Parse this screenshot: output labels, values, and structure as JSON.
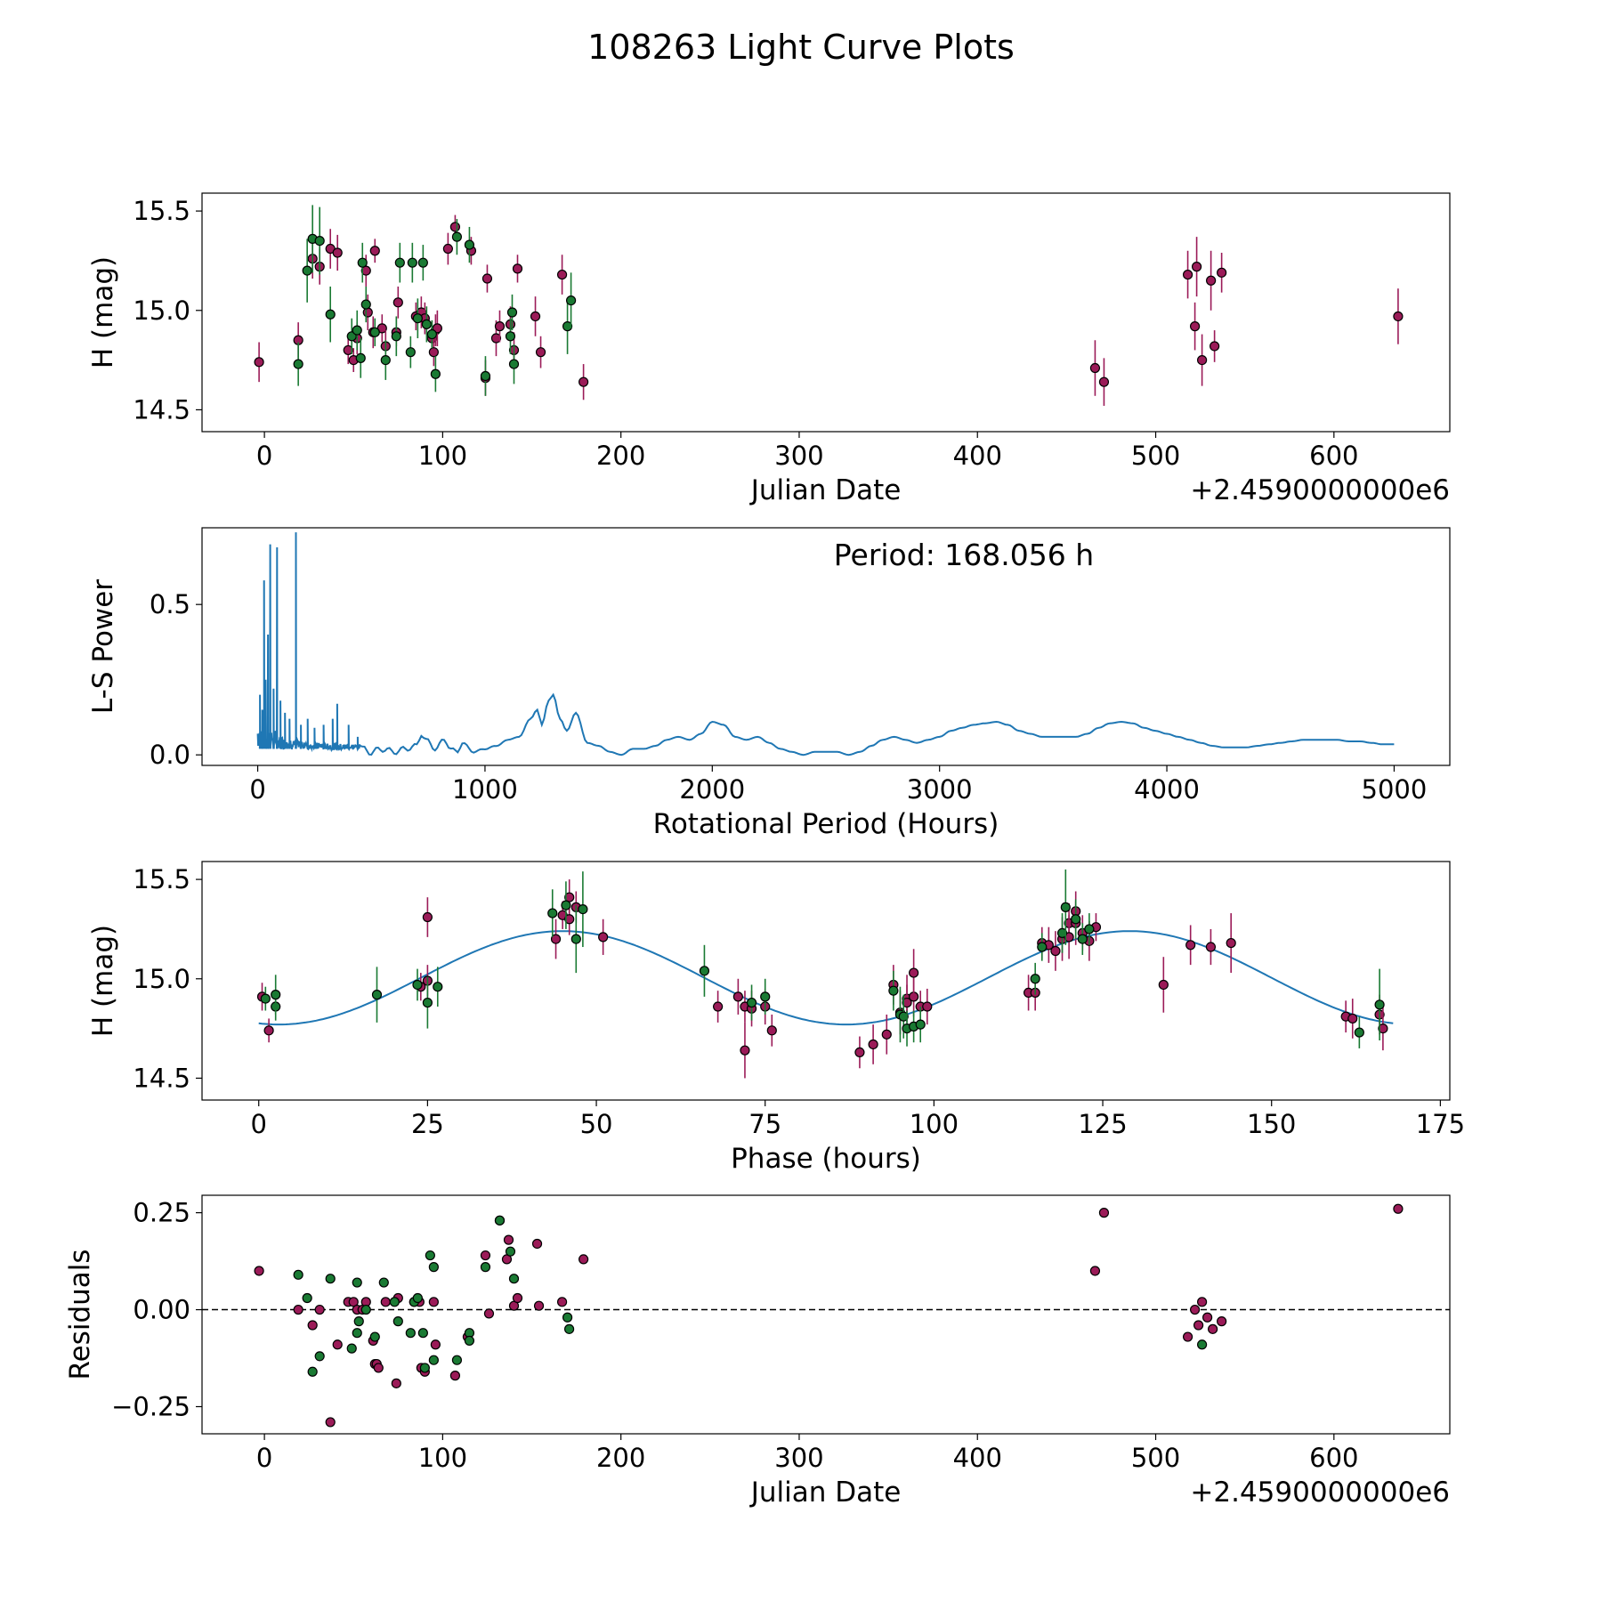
{
  "figure": {
    "title": "108263 Light Curve Plots"
  },
  "colors": {
    "filter_r": "#9b1b58",
    "filter_g": "#1a7a33",
    "marker_edge": "#000000",
    "model_line": "#1f77b4",
    "zero_line": "#000000"
  },
  "chart_data": [
    {
      "id": "light_curve",
      "type": "scatter",
      "title": "",
      "xlabel": "Julian Date",
      "ylabel": "H (mag)",
      "x_offset_text": "+2.4590000000e6",
      "xlim": [
        -35,
        665
      ],
      "ylim": [
        14.39,
        15.59
      ],
      "xticks": [
        0,
        100,
        200,
        300,
        400,
        500,
        600
      ],
      "xtick_labels": [
        "0",
        "100",
        "200",
        "300",
        "400",
        "500",
        "600"
      ],
      "yticks": [
        14.5,
        15.0,
        15.5
      ],
      "ytick_labels": [
        "14.5",
        "15.0",
        "15.5"
      ],
      "y_inverted": false,
      "grid": false,
      "series": [
        {
          "filter": "r",
          "color": "#9b1b58",
          "x": [
            -3,
            19,
            27,
            31,
            37,
            41,
            47,
            50,
            52,
            57,
            58,
            61,
            62,
            66,
            68,
            74,
            75,
            85,
            88,
            90,
            94,
            95,
            96,
            97,
            103,
            107,
            116,
            124,
            125,
            130,
            132,
            138,
            140,
            142,
            152,
            155,
            167,
            179,
            466,
            471,
            518,
            522,
            523,
            526,
            531,
            533,
            537,
            636
          ],
          "y": [
            14.74,
            14.85,
            15.26,
            15.22,
            15.31,
            15.29,
            14.8,
            14.75,
            14.86,
            15.2,
            14.99,
            14.89,
            15.3,
            14.91,
            14.82,
            14.89,
            15.04,
            14.97,
            14.99,
            14.96,
            14.86,
            14.79,
            14.9,
            14.91,
            15.31,
            15.42,
            15.3,
            14.66,
            15.16,
            14.86,
            14.92,
            14.93,
            14.8,
            15.21,
            14.97,
            14.79,
            15.18,
            14.64,
            14.71,
            14.64,
            15.18,
            14.92,
            15.22,
            14.75,
            15.15,
            14.82,
            15.19,
            14.97
          ],
          "yerr": [
            0.1,
            0.09,
            0.1,
            0.09,
            0.1,
            0.09,
            0.07,
            0.06,
            0.08,
            0.08,
            0.09,
            0.08,
            0.06,
            0.07,
            0.08,
            0.07,
            0.08,
            0.07,
            0.08,
            0.08,
            0.09,
            0.07,
            0.08,
            0.09,
            0.08,
            0.06,
            0.07,
            0.09,
            0.07,
            0.09,
            0.08,
            0.09,
            0.09,
            0.07,
            0.1,
            0.08,
            0.1,
            0.09,
            0.14,
            0.12,
            0.12,
            0.12,
            0.15,
            0.13,
            0.15,
            0.08,
            0.1,
            0.14
          ]
        },
        {
          "filter": "g",
          "color": "#1a7a33",
          "x": [
            19,
            24,
            27,
            31,
            37,
            49,
            52,
            54,
            55,
            57,
            62,
            68,
            74,
            76,
            82,
            83,
            86,
            89,
            91,
            94,
            96,
            108,
            115,
            124,
            140,
            139,
            138,
            170,
            172
          ],
          "y": [
            14.73,
            15.2,
            15.36,
            15.35,
            14.98,
            14.87,
            14.9,
            14.76,
            15.24,
            15.03,
            14.89,
            14.75,
            14.87,
            15.24,
            14.79,
            15.24,
            14.96,
            15.24,
            14.93,
            14.88,
            14.68,
            15.37,
            15.33,
            14.67,
            14.73,
            14.99,
            14.87,
            14.92,
            15.05
          ],
          "yerr": [
            0.11,
            0.16,
            0.17,
            0.17,
            0.14,
            0.09,
            0.1,
            0.1,
            0.1,
            0.09,
            0.07,
            0.1,
            0.1,
            0.1,
            0.08,
            0.1,
            0.1,
            0.09,
            0.09,
            0.07,
            0.09,
            0.09,
            0.09,
            0.1,
            0.1,
            0.09,
            0.09,
            0.14,
            0.14
          ]
        }
      ]
    },
    {
      "id": "periodogram",
      "type": "line",
      "title": "",
      "xlabel": "Rotational Period (Hours)",
      "ylabel": "L-S Power",
      "annotation": "Period: 168.056 h",
      "xlim": [
        -245,
        5245
      ],
      "ylim": [
        -0.035,
        0.755
      ],
      "xticks": [
        0,
        1000,
        2000,
        3000,
        4000,
        5000
      ],
      "xtick_labels": [
        "0",
        "1000",
        "2000",
        "3000",
        "4000",
        "5000"
      ],
      "yticks": [
        0.0,
        0.5
      ],
      "ytick_labels": [
        "0.0",
        "0.5"
      ],
      "grid": false,
      "spikes": [
        {
          "x": 10,
          "y": 0.2
        },
        {
          "x": 20,
          "y": 0.15
        },
        {
          "x": 28,
          "y": 0.58
        },
        {
          "x": 35,
          "y": 0.25
        },
        {
          "x": 45,
          "y": 0.4
        },
        {
          "x": 55,
          "y": 0.7
        },
        {
          "x": 70,
          "y": 0.22
        },
        {
          "x": 85,
          "y": 0.69
        },
        {
          "x": 100,
          "y": 0.18
        },
        {
          "x": 120,
          "y": 0.14
        },
        {
          "x": 140,
          "y": 0.12
        },
        {
          "x": 168.056,
          "y": 0.74
        },
        {
          "x": 190,
          "y": 0.1
        },
        {
          "x": 220,
          "y": 0.12
        },
        {
          "x": 250,
          "y": 0.09
        },
        {
          "x": 290,
          "y": 0.1
        },
        {
          "x": 330,
          "y": 0.12
        },
        {
          "x": 350,
          "y": 0.17
        },
        {
          "x": 400,
          "y": 0.1
        },
        {
          "x": 440,
          "y": 0.06
        }
      ],
      "envelope": {
        "x": [
          0,
          450,
          500,
          550,
          600,
          650,
          700,
          720,
          740,
          780,
          820,
          850,
          880,
          900,
          950,
          1000,
          1050,
          1100,
          1150,
          1200,
          1230,
          1250,
          1280,
          1300,
          1330,
          1360,
          1400,
          1450,
          1500,
          1550,
          1600,
          1650,
          1700,
          1750,
          1800,
          1850,
          1900,
          1950,
          2000,
          2050,
          2100,
          2150,
          2200,
          2250,
          2300,
          2350,
          2400,
          2450,
          2500,
          2550,
          2600,
          2650,
          2700,
          2750,
          2800,
          2850,
          2900,
          2950,
          3000,
          3050,
          3100,
          3150,
          3200,
          3250,
          3300,
          3350,
          3400,
          3450,
          3500,
          3550,
          3600,
          3650,
          3700,
          3750,
          3800,
          3850,
          3900,
          3950,
          4000,
          4050,
          4100,
          4150,
          4200,
          4250,
          4300,
          4350,
          4400,
          4450,
          4500,
          4550,
          4600,
          4650,
          4700,
          4750,
          4800,
          4850,
          4900,
          4950,
          5000
        ],
        "y": [
          0.02,
          0.02,
          0.01,
          0.02,
          0.01,
          0.02,
          0.03,
          0.07,
          0.05,
          0.02,
          0.05,
          0.02,
          0.01,
          0.04,
          0.01,
          0.02,
          0.03,
          0.05,
          0.06,
          0.12,
          0.15,
          0.1,
          0.18,
          0.2,
          0.12,
          0.08,
          0.14,
          0.04,
          0.03,
          0.01,
          0.0,
          0.02,
          0.02,
          0.03,
          0.05,
          0.06,
          0.05,
          0.07,
          0.11,
          0.1,
          0.06,
          0.05,
          0.06,
          0.04,
          0.02,
          0.01,
          0.0,
          0.01,
          0.01,
          0.01,
          0.0,
          0.01,
          0.03,
          0.05,
          0.06,
          0.05,
          0.04,
          0.05,
          0.06,
          0.08,
          0.09,
          0.1,
          0.105,
          0.11,
          0.1,
          0.08,
          0.07,
          0.06,
          0.06,
          0.06,
          0.06,
          0.07,
          0.09,
          0.105,
          0.11,
          0.105,
          0.09,
          0.08,
          0.07,
          0.06,
          0.05,
          0.04,
          0.03,
          0.025,
          0.025,
          0.025,
          0.03,
          0.035,
          0.04,
          0.045,
          0.05,
          0.05,
          0.05,
          0.05,
          0.045,
          0.045,
          0.04,
          0.035,
          0.035
        ]
      }
    },
    {
      "id": "phased",
      "type": "scatter",
      "title": "",
      "xlabel": "Phase (hours)",
      "ylabel": "H (mag)",
      "xlim": [
        -8.4,
        176.4
      ],
      "ylim": [
        14.39,
        15.59
      ],
      "xticks": [
        0,
        25,
        50,
        75,
        100,
        125,
        150,
        175
      ],
      "xtick_labels": [
        "0",
        "25",
        "50",
        "75",
        "100",
        "125",
        "150",
        "175"
      ],
      "yticks": [
        14.5,
        15.0,
        15.5
      ],
      "ytick_labels": [
        "14.5",
        "15.0",
        "15.5"
      ],
      "grid": false,
      "model": {
        "mean": 15.005,
        "amplitude": 0.235,
        "period": 84.0,
        "phase_shift": 24.0,
        "x_range": [
          0,
          168
        ]
      },
      "series": [
        {
          "filter": "r",
          "color": "#9b1b58",
          "x": [
            0.5,
            1.5,
            24,
            25,
            25,
            45,
            44,
            46,
            46,
            47,
            51,
            68,
            71,
            72,
            72,
            73,
            75,
            76,
            89,
            91,
            93,
            94,
            95,
            96,
            96,
            97,
            97,
            98,
            99,
            114,
            115,
            116,
            117,
            118,
            119,
            120,
            120,
            121,
            121,
            122,
            123,
            124,
            134,
            138,
            141,
            144,
            161,
            162,
            166,
            166.5
          ],
          "y": [
            14.91,
            14.74,
            14.96,
            14.99,
            15.31,
            15.32,
            15.2,
            15.41,
            15.3,
            15.36,
            15.21,
            14.86,
            14.91,
            14.64,
            14.86,
            14.85,
            14.86,
            14.74,
            14.63,
            14.67,
            14.72,
            14.97,
            14.83,
            14.9,
            14.88,
            14.91,
            15.03,
            14.86,
            14.86,
            14.93,
            14.93,
            15.18,
            15.17,
            15.14,
            15.2,
            15.28,
            15.21,
            15.34,
            15.28,
            15.23,
            15.19,
            15.26,
            14.97,
            15.17,
            15.16,
            15.18,
            14.81,
            14.8,
            14.82,
            14.75
          ],
          "yerr": [
            0.07,
            0.06,
            0.07,
            0.08,
            0.1,
            0.07,
            0.1,
            0.09,
            0.08,
            0.08,
            0.09,
            0.08,
            0.09,
            0.14,
            0.08,
            0.09,
            0.09,
            0.08,
            0.08,
            0.1,
            0.1,
            0.1,
            0.11,
            0.12,
            0.09,
            0.1,
            0.12,
            0.08,
            0.09,
            0.09,
            0.09,
            0.08,
            0.09,
            0.1,
            0.11,
            0.1,
            0.11,
            0.1,
            0.11,
            0.09,
            0.1,
            0.07,
            0.14,
            0.1,
            0.09,
            0.15,
            0.08,
            0.1,
            0.1,
            0.11
          ]
        },
        {
          "filter": "g",
          "color": "#1a7a33",
          "x": [
            1,
            2.5,
            2.5,
            17.5,
            23.5,
            25,
            26.5,
            43.5,
            45.5,
            47,
            48,
            66,
            73,
            75,
            94,
            95,
            95.5,
            96,
            97,
            98,
            115,
            116,
            119,
            119.5,
            121,
            122,
            123,
            163,
            166
          ],
          "y": [
            14.9,
            14.86,
            14.92,
            14.92,
            14.97,
            14.88,
            14.96,
            15.33,
            15.37,
            15.2,
            15.35,
            15.04,
            14.88,
            14.91,
            14.94,
            14.82,
            14.81,
            14.75,
            14.76,
            14.77,
            15.0,
            15.16,
            15.23,
            15.36,
            15.3,
            15.2,
            15.25,
            14.73,
            14.87
          ],
          "yerr": [
            0.06,
            0.07,
            0.1,
            0.14,
            0.08,
            0.13,
            0.1,
            0.12,
            0.12,
            0.17,
            0.19,
            0.13,
            0.09,
            0.09,
            0.1,
            0.14,
            0.11,
            0.09,
            0.08,
            0.09,
            0.08,
            0.07,
            0.1,
            0.19,
            0.1,
            0.08,
            0.08,
            0.08,
            0.18
          ]
        }
      ]
    },
    {
      "id": "residuals",
      "type": "scatter",
      "title": "",
      "xlabel": "Julian Date",
      "ylabel": "Residuals",
      "x_offset_text": "+2.4590000000e6",
      "xlim": [
        -35,
        665
      ],
      "ylim": [
        -0.32,
        0.295
      ],
      "xticks": [
        0,
        100,
        200,
        300,
        400,
        500,
        600
      ],
      "xtick_labels": [
        "0",
        "100",
        "200",
        "300",
        "400",
        "500",
        "600"
      ],
      "yticks": [
        -0.25,
        0.0,
        0.25
      ],
      "ytick_labels": [
        "−0.25",
        "0.00",
        "0.25"
      ],
      "zero_line": 0.0,
      "grid": false,
      "series": [
        {
          "filter": "r",
          "color": "#9b1b58",
          "x": [
            -3,
            19,
            27,
            31,
            37,
            41,
            47,
            50,
            52,
            55,
            57,
            61,
            62,
            63,
            64,
            68,
            74,
            75,
            84,
            87,
            88,
            90,
            95,
            96,
            107,
            114,
            124,
            126,
            132,
            136,
            137,
            140,
            142,
            154,
            153,
            167,
            179,
            466,
            471,
            518,
            522,
            524,
            526,
            529,
            532,
            537,
            636
          ],
          "y": [
            0.1,
            0.0,
            -0.04,
            0.0,
            -0.29,
            -0.09,
            0.02,
            0.02,
            0.0,
            0.0,
            0.02,
            -0.08,
            -0.14,
            -0.14,
            -0.15,
            0.02,
            -0.19,
            0.03,
            0.02,
            0.02,
            -0.15,
            -0.16,
            0.02,
            -0.09,
            -0.17,
            -0.07,
            0.14,
            -0.01,
            0.23,
            0.13,
            0.18,
            0.01,
            0.03,
            0.01,
            0.17,
            0.02,
            0.13,
            0.1,
            0.25,
            -0.07,
            0.0,
            -0.04,
            0.02,
            -0.02,
            -0.05,
            -0.03,
            0.26
          ]
        },
        {
          "filter": "g",
          "color": "#1a7a33",
          "x": [
            19,
            24,
            27,
            31,
            37,
            49,
            52,
            52,
            53,
            57,
            62,
            67,
            73,
            75,
            82,
            84,
            86,
            89,
            90,
            93,
            95,
            95,
            108,
            115,
            115,
            124,
            132,
            138,
            140,
            170,
            171,
            526
          ],
          "y": [
            0.09,
            0.03,
            -0.16,
            -0.12,
            0.08,
            -0.1,
            -0.06,
            0.07,
            -0.03,
            0.0,
            -0.07,
            0.07,
            0.02,
            -0.03,
            -0.06,
            0.02,
            0.03,
            -0.06,
            -0.15,
            0.14,
            0.11,
            -0.13,
            -0.13,
            -0.06,
            -0.08,
            0.11,
            0.23,
            0.15,
            0.08,
            -0.02,
            -0.05,
            -0.09
          ]
        }
      ]
    }
  ]
}
